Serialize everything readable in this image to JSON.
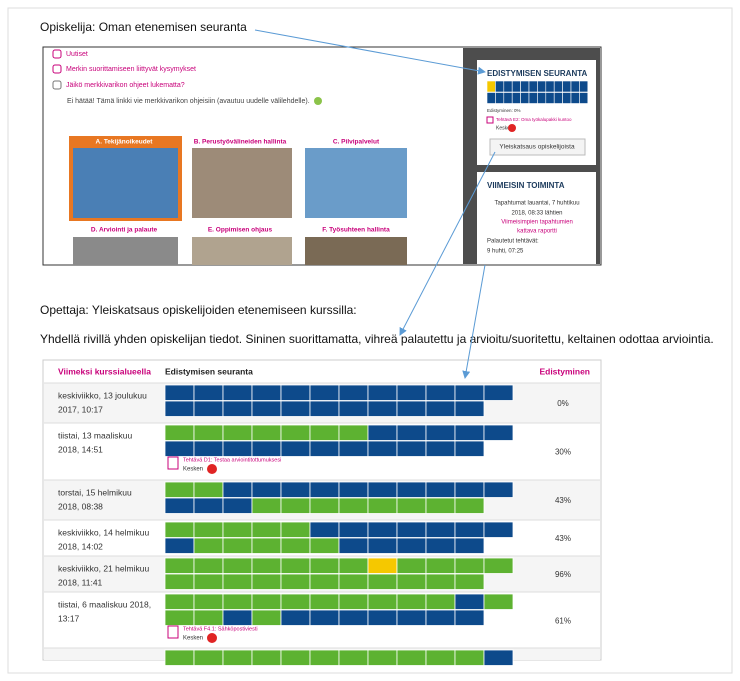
{
  "captions": [
    "Opiskelija: Oman etenemisen seuranta",
    "Opettaja: Yleiskatsaus opiskelijoiden etenemiseen kurssilla:",
    "Yhdellä rivillä yhden opiskelijan tiedot. Sininen suorittamatta, vihreä palautettu ja arvioitu/suoritettu, keltainen odottaa arviointia."
  ],
  "student_view": {
    "links": [
      "Uutiset",
      "Merkin suorittamiseen liittyvät kysymykset",
      "Jäikö merkkivarikon ohjeet lukematta?"
    ],
    "note": "Ei hätää! Tämä linkki vie merkkivarikon ohjeisiin (avautuu uudelle välilehdelle).",
    "tiles": [
      "A. Tekijänoikeudet",
      "B. Perustyövälineiden hallinta",
      "C. Pilvipalvelut",
      "D. Arviointi ja palaute",
      "E. Oppimisen ohjaus",
      "F. Työsuhteen hallinta"
    ],
    "progress_block": {
      "title": "EDISTYMISEN SEURANTA",
      "progress": "Edistyminen: 0%",
      "task": "Tehtävä E2: Oma työkalupakki kuntoo",
      "status": "Kesken",
      "button": "Yleiskatsaus opiskelijoista"
    },
    "activity_block": {
      "title": "VIIMEISIN TOIMINTA",
      "since": [
        "Tapahtumat lauantai, 7 huhtikuu",
        "2018, 08:33 lähtien"
      ],
      "report": [
        "Viimeisimpien tapahtumien",
        "kattava raportti"
      ],
      "submitted": "Palautetut tehtävät:",
      "time": "9 huhti, 07:25"
    }
  },
  "teacher_view": {
    "headers": [
      "Viimeksi kurssialueella",
      "Edistymisen seuranta",
      "Edistyminen"
    ],
    "rows": [
      {
        "date": [
          "keskiviikko, 13 joulukuu",
          "2017, 10:17"
        ],
        "progress": "0%"
      },
      {
        "date": [
          "tiistai, 13 maaliskuu",
          "2018, 14:51"
        ],
        "progress": "30%",
        "task": "Tehtävä D1: Testaa arviointitottumuksesi",
        "status": "Kesken"
      },
      {
        "date": [
          "torstai, 15 helmikuu",
          "2018, 08:38"
        ],
        "progress": "43%"
      },
      {
        "date": [
          "keskiviikko, 14 helmikuu",
          "2018, 14:02"
        ],
        "progress": "43%"
      },
      {
        "date": [
          "keskiviikko, 21 helmikuu",
          "2018, 11:41"
        ],
        "progress": "96%"
      },
      {
        "date": [
          "tiistai, 6 maaliskuu 2018,",
          "13:17"
        ],
        "progress": "61%",
        "task": "Tehtävä F4.1: Sähköpostiviesti",
        "status": "Kesken"
      }
    ]
  }
}
